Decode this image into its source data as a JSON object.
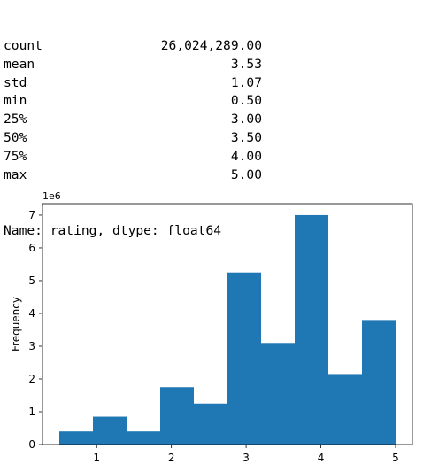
{
  "describe": {
    "rows": [
      {
        "name": "count",
        "value": "26,024,289.00"
      },
      {
        "name": "mean",
        "value": "3.53"
      },
      {
        "name": "std",
        "value": "1.07"
      },
      {
        "name": "min",
        "value": "0.50"
      },
      {
        "name": "25%",
        "value": "3.00"
      },
      {
        "name": "50%",
        "value": "3.50"
      },
      {
        "name": "75%",
        "value": "4.00"
      },
      {
        "name": "max",
        "value": "5.00"
      }
    ],
    "footer": "Name: rating, dtype: float64"
  },
  "chart_data": {
    "type": "bar",
    "title": "",
    "xlabel": "",
    "ylabel": "Frequency",
    "y_scale_label": "1e6",
    "bins": [
      {
        "x0": 0.5,
        "x1": 0.95,
        "value": 0.4
      },
      {
        "x0": 0.95,
        "x1": 1.4,
        "value": 0.85
      },
      {
        "x0": 1.4,
        "x1": 1.85,
        "value": 0.4
      },
      {
        "x0": 1.85,
        "x1": 2.3,
        "value": 1.75
      },
      {
        "x0": 2.3,
        "x1": 2.75,
        "value": 1.25
      },
      {
        "x0": 2.75,
        "x1": 3.2,
        "value": 5.25
      },
      {
        "x0": 3.2,
        "x1": 3.65,
        "value": 3.1
      },
      {
        "x0": 3.65,
        "x1": 4.1,
        "value": 7.0
      },
      {
        "x0": 4.1,
        "x1": 4.55,
        "value": 2.15
      },
      {
        "x0": 4.55,
        "x1": 5.0,
        "value": 3.8
      }
    ],
    "xlim": [
      0.275,
      5.225
    ],
    "ylim": [
      0,
      7.35
    ],
    "xticks": [
      1,
      2,
      3,
      4,
      5
    ],
    "yticks": [
      0,
      1,
      2,
      3,
      4,
      5,
      6,
      7
    ],
    "bar_color": "#1f77b4",
    "grid": false
  }
}
